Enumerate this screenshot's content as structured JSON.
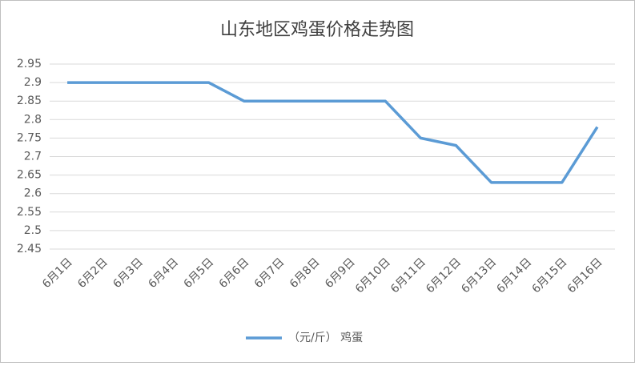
{
  "chart_data": {
    "type": "line",
    "title": "山东地区鸡蛋价格走势图",
    "categories": [
      "6月1日",
      "6月2日",
      "6月3日",
      "6月4日",
      "6月5日",
      "6月6日",
      "6月7日",
      "6月8日",
      "6月9日",
      "6月10日",
      "6月11日",
      "6月12日",
      "6月13日",
      "6月14日",
      "6月15日",
      "6月16日"
    ],
    "series": [
      {
        "name": "（元/斤） 鸡蛋",
        "color": "#5b9bd5",
        "values": [
          2.9,
          2.9,
          2.9,
          2.9,
          2.9,
          2.85,
          2.85,
          2.85,
          2.85,
          2.85,
          2.75,
          2.73,
          2.63,
          2.63,
          2.63,
          2.78
        ]
      }
    ],
    "ylim": [
      2.45,
      2.95
    ],
    "yticks": [
      2.45,
      2.5,
      2.55,
      2.6,
      2.65,
      2.7,
      2.75,
      2.8,
      2.85,
      2.9,
      2.95
    ],
    "grid": true,
    "legend": "bottom"
  }
}
